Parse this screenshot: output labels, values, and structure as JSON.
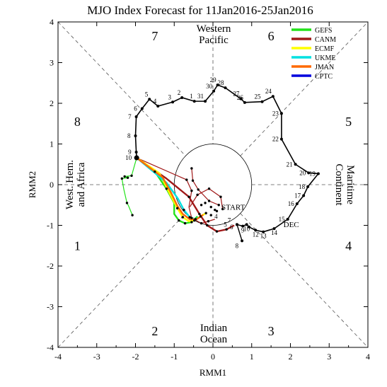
{
  "chart_data": {
    "type": "line",
    "title": "MJO Index Forecast for 11Jan2016-25Jan2016",
    "xlabel": "RMM1",
    "ylabel": "RMM2",
    "xlim": [
      -4,
      4
    ],
    "ylim": [
      -4,
      4
    ],
    "x_ticks": [
      "-4",
      "-3",
      "-2",
      "-1",
      "0",
      "1",
      "2",
      "3",
      "4"
    ],
    "y_ticks": [
      "-4",
      "-3",
      "-2",
      "-1",
      "0",
      "1",
      "2",
      "3",
      "4"
    ],
    "grid": false,
    "legend_position": "top-right",
    "phase_numbers": [
      {
        "text": "1",
        "x": -3.5,
        "y": -1.5
      },
      {
        "text": "2",
        "x": -1.5,
        "y": -3.6
      },
      {
        "text": "3",
        "x": 1.5,
        "y": -3.6
      },
      {
        "text": "4",
        "x": 3.5,
        "y": -1.5
      },
      {
        "text": "5",
        "x": 3.5,
        "y": 1.55
      },
      {
        "text": "6",
        "x": 1.5,
        "y": 3.65
      },
      {
        "text": "7",
        "x": -1.5,
        "y": 3.65
      },
      {
        "text": "8",
        "x": -3.5,
        "y": 1.55
      }
    ],
    "region_labels": {
      "top": [
        "Western",
        "Pacific"
      ],
      "bottom": [
        "Indian",
        "Ocean"
      ],
      "left": [
        "West. Hem.",
        "and Africa"
      ],
      "right": [
        "Maritime",
        "Continent"
      ]
    },
    "annotations": [
      {
        "text": "START",
        "x": 0.22,
        "y": -0.62
      },
      {
        "text": "DEC",
        "x": 1.82,
        "y": -1.04
      }
    ],
    "observed": {
      "color": "#000000",
      "points": [
        {
          "label": "",
          "x": 0.62,
          "y": -0.98
        },
        {
          "label": "9",
          "x": 0.77,
          "y": -1.02
        },
        {
          "label": "10",
          "x": 0.87,
          "y": -0.98
        },
        {
          "label": "",
          "x": 0.93,
          "y": -1.04
        },
        {
          "label": "12",
          "x": 1.1,
          "y": -1.12
        },
        {
          "label": "13",
          "x": 1.3,
          "y": -1.16
        },
        {
          "label": "14",
          "x": 1.58,
          "y": -1.08
        },
        {
          "label": "15",
          "x": 1.93,
          "y": -0.85
        },
        {
          "label": "16",
          "x": 2.17,
          "y": -0.47
        },
        {
          "label": "17",
          "x": 2.34,
          "y": -0.27
        },
        {
          "label": "18",
          "x": 2.45,
          "y": -0.05
        },
        {
          "label": "19",
          "x": 2.72,
          "y": 0.27
        },
        {
          "label": "20",
          "x": 2.47,
          "y": 0.29
        },
        {
          "label": "21",
          "x": 2.13,
          "y": 0.5
        },
        {
          "label": "22",
          "x": 1.77,
          "y": 1.12
        },
        {
          "label": "23",
          "x": 1.77,
          "y": 1.75
        },
        {
          "label": "24",
          "x": 1.55,
          "y": 2.17
        },
        {
          "label": "25",
          "x": 1.27,
          "y": 2.04
        },
        {
          "label": "26",
          "x": 0.82,
          "y": 2.02
        },
        {
          "label": "27",
          "x": 0.72,
          "y": 2.11
        },
        {
          "label": "28",
          "x": 0.32,
          "y": 2.38
        },
        {
          "label": "29",
          "x": 0.12,
          "y": 2.45
        },
        {
          "label": "30",
          "x": 0.02,
          "y": 2.3
        },
        {
          "label": "31",
          "x": -0.2,
          "y": 2.05
        },
        {
          "label": "1",
          "x": -0.48,
          "y": 2.05
        },
        {
          "label": "2",
          "x": -0.8,
          "y": 2.14
        },
        {
          "label": "3",
          "x": -1.04,
          "y": 2.03
        },
        {
          "label": "4",
          "x": -1.42,
          "y": 1.93
        },
        {
          "label": "5",
          "x": -1.64,
          "y": 2.1
        },
        {
          "label": "6",
          "x": -1.83,
          "y": 1.87
        },
        {
          "label": "7",
          "x": -1.98,
          "y": 1.67
        },
        {
          "label": "8",
          "x": -2.0,
          "y": 1.2
        },
        {
          "label": "9",
          "x": -1.98,
          "y": 0.8
        },
        {
          "label": "10",
          "x": -1.97,
          "y": 0.66
        }
      ]
    },
    "observed_earlier": {
      "color": "#000000",
      "points": [
        {
          "label": "8",
          "x": 0.75,
          "y": -1.38
        },
        {
          "label": "",
          "x": 0.62,
          "y": -0.98
        }
      ]
    },
    "series": [
      {
        "name": "GEFS",
        "color": "#22e21a",
        "points": [
          [
            -1.97,
            0.66
          ],
          [
            -1.5,
            0.32
          ],
          [
            -1.2,
            -0.1
          ],
          [
            -1.0,
            -0.45
          ],
          [
            -1.0,
            -0.72
          ],
          [
            -0.88,
            -0.88
          ],
          [
            -0.72,
            -0.95
          ],
          [
            -0.55,
            -0.92
          ],
          [
            -0.4,
            -0.78
          ]
        ]
      },
      {
        "name": "CANM",
        "color": "#a01818",
        "points": [
          [
            -1.97,
            0.66
          ],
          [
            -1.2,
            0.15
          ],
          [
            -0.62,
            -0.3
          ],
          [
            -0.35,
            -0.72
          ],
          [
            -0.15,
            -1.0
          ],
          [
            0.1,
            -1.15
          ],
          [
            0.35,
            -1.1
          ],
          [
            0.55,
            -1.0
          ]
        ]
      },
      {
        "name": "ECMF",
        "color": "#ffff00",
        "points": [
          [
            -1.97,
            0.66
          ],
          [
            -1.38,
            0.28
          ],
          [
            -1.1,
            -0.25
          ],
          [
            -0.92,
            -0.58
          ],
          [
            -0.78,
            -0.8
          ],
          [
            -0.62,
            -0.9
          ],
          [
            -0.48,
            -0.88
          ],
          [
            -0.32,
            -0.78
          ],
          [
            -0.18,
            -0.7
          ]
        ]
      },
      {
        "name": "UKME",
        "color": "#00e0e0",
        "points": [
          [
            -1.97,
            0.66
          ],
          [
            -1.2,
            0.05
          ],
          [
            -0.9,
            -0.35
          ],
          [
            -0.75,
            -0.62
          ],
          [
            -0.6,
            -0.8
          ],
          [
            -0.45,
            -0.85
          ],
          [
            -0.3,
            -0.78
          ]
        ]
      },
      {
        "name": "JMAN",
        "color": "#ff6a00",
        "points": [
          [
            -1.97,
            0.66
          ],
          [
            -1.3,
            0.18
          ],
          [
            -1.08,
            -0.2
          ],
          [
            -0.92,
            -0.52
          ],
          [
            -0.78,
            -0.72
          ],
          [
            -0.6,
            -0.85
          ],
          [
            -0.42,
            -0.85
          ],
          [
            -0.25,
            -0.74
          ]
        ]
      },
      {
        "name": "CPTC",
        "color": "#0000dd",
        "points": []
      }
    ],
    "ensemble_lines": [
      {
        "color": "#22e21a",
        "points": [
          [
            -1.97,
            0.66
          ],
          [
            -2.1,
            0.22
          ],
          [
            -2.28,
            0.2
          ],
          [
            -2.2,
            0.17
          ],
          [
            -2.35,
            0.15
          ],
          [
            -2.3,
            -0.12
          ],
          [
            -2.22,
            -0.45
          ],
          [
            -2.18,
            -0.52
          ],
          [
            -2.08,
            -0.75
          ]
        ]
      },
      {
        "color": "#a01818",
        "points": [
          [
            -1.97,
            0.66
          ],
          [
            -0.68,
            0.12
          ],
          [
            -0.55,
            -0.15
          ],
          [
            -0.62,
            -0.55
          ],
          [
            -0.55,
            -0.82
          ],
          [
            -0.3,
            -0.95
          ],
          [
            -0.12,
            -0.9
          ],
          [
            0.05,
            -0.85
          ]
        ]
      },
      {
        "color": "#a01818",
        "points": [
          [
            -0.55,
            0.4
          ],
          [
            -0.52,
            0.1
          ],
          [
            -0.38,
            -0.12
          ],
          [
            -0.1,
            -0.4
          ],
          [
            0.15,
            -0.5
          ]
        ]
      },
      {
        "color": "#a01818",
        "points": [
          [
            -0.6,
            -0.55
          ],
          [
            -0.4,
            -0.25
          ],
          [
            -0.1,
            -0.1
          ],
          [
            0.2,
            -0.3
          ],
          [
            0.25,
            -0.6
          ]
        ]
      }
    ],
    "ensemble_dots": {
      "color": "#000000",
      "points": [
        [
          -2.1,
          0.22
        ],
        [
          -2.28,
          0.2
        ],
        [
          -2.2,
          0.17
        ],
        [
          -2.35,
          0.15
        ],
        [
          -2.22,
          -0.45
        ],
        [
          -2.08,
          -0.75
        ],
        [
          -1.5,
          0.32
        ],
        [
          -1.2,
          -0.1
        ],
        [
          -0.88,
          -0.88
        ],
        [
          -0.72,
          -0.95
        ],
        [
          -0.55,
          -0.92
        ],
        [
          -0.62,
          -0.3
        ],
        [
          -0.35,
          -0.72
        ],
        [
          -0.15,
          -1.0
        ],
        [
          0.1,
          -1.15
        ],
        [
          0.35,
          -1.1
        ],
        [
          -0.92,
          -0.58
        ],
        [
          -0.78,
          -0.8
        ],
        [
          -0.48,
          -0.88
        ],
        [
          -0.32,
          -0.78
        ],
        [
          -0.18,
          -0.7
        ],
        [
          -0.75,
          -0.62
        ],
        [
          -0.6,
          -0.8
        ],
        [
          -0.45,
          -0.85
        ],
        [
          -0.68,
          0.12
        ],
        [
          -0.55,
          -0.15
        ],
        [
          -0.55,
          -0.82
        ],
        [
          -0.3,
          -0.95
        ],
        [
          -0.12,
          -0.9
        ],
        [
          -0.55,
          0.4
        ],
        [
          -0.52,
          0.1
        ],
        [
          -0.38,
          -0.12
        ],
        [
          -0.1,
          -0.4
        ],
        [
          0.15,
          -0.5
        ],
        [
          -0.4,
          -0.25
        ],
        [
          -0.1,
          -0.1
        ],
        [
          0.2,
          -0.3
        ],
        [
          0.25,
          -0.6
        ],
        [
          -0.3,
          -0.5
        ],
        [
          -0.2,
          -0.45
        ],
        [
          -0.05,
          -0.55
        ],
        [
          0.1,
          -0.65
        ],
        [
          -0.05,
          -0.75
        ],
        [
          0.05,
          -0.62
        ]
      ]
    },
    "start_point_labels": [
      {
        "text": "4",
        "x": 0.08,
        "y": -0.78
      },
      {
        "text": "5",
        "x": 0.32,
        "y": -0.98
      },
      {
        "text": "6",
        "x": 0.48,
        "y": -1.04
      },
      {
        "text": "7",
        "x": 0.42,
        "y": -0.88
      }
    ]
  }
}
